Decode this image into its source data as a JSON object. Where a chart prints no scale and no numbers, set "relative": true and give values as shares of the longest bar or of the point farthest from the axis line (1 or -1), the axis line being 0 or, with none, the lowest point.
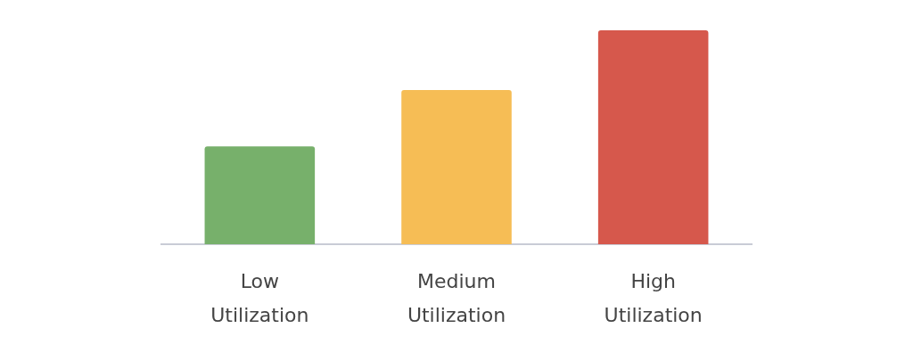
{
  "chart_data": {
    "type": "bar",
    "relative": true,
    "categories": [
      "Low Utilization",
      "Medium Utilization",
      "High Utilization"
    ],
    "values": [
      0.457,
      0.721,
      1
    ],
    "colors": [
      "#77b06b",
      "#f6bd55",
      "#d6584c"
    ],
    "grid": false,
    "legend": false
  }
}
